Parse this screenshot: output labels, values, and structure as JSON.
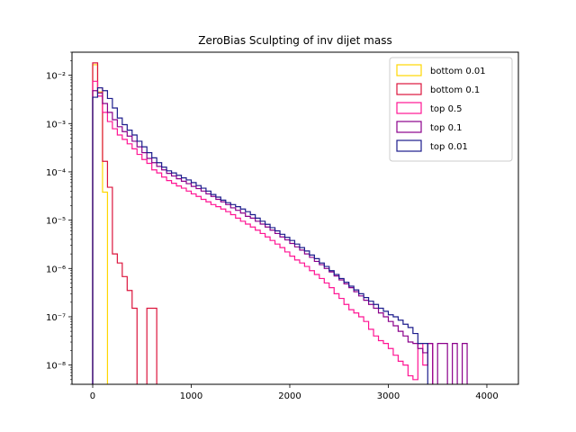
{
  "chart_data": {
    "type": "histogram-step",
    "title": "ZeroBias Sculpting of inv dijet mass",
    "xlabel": "",
    "ylabel": "",
    "xlim": [
      -210,
      4320
    ],
    "ylim": [
      4e-09,
      0.03
    ],
    "yscale": "log",
    "xticks": [
      0,
      1000,
      2000,
      3000,
      4000
    ],
    "xtick_labels": [
      "0",
      "1000",
      "2000",
      "3000",
      "4000"
    ],
    "yticks": [
      1e-08,
      1e-07,
      1e-06,
      1e-05,
      0.0001,
      0.001,
      0.01
    ],
    "ytick_labels": [
      "10⁻⁸",
      "10⁻⁷",
      "10⁻⁶",
      "10⁻⁵",
      "10⁻⁴",
      "10⁻³",
      "10⁻²"
    ],
    "legend_position": "top-right",
    "bin_width": 50,
    "series": [
      {
        "name": "bottom 0.01",
        "color": "#ffd700",
        "x_start": 0,
        "values": [
          0.0165,
          0.0045,
          3.8e-05,
          0
        ]
      },
      {
        "name": "bottom 0.1",
        "color": "#dc143c",
        "x_start": 0,
        "values": [
          0.018,
          0.0055,
          0.000165,
          4.8e-05,
          2e-06,
          1.3e-06,
          6.8e-07,
          3.5e-07,
          1.5e-07,
          0,
          0,
          1.5e-07,
          1.5e-07,
          0
        ]
      },
      {
        "name": "top 0.5",
        "color": "#ff1493",
        "x_start": 0,
        "values": [
          0.0075,
          0.0037,
          0.0017,
          0.0011,
          0.00078,
          0.00058,
          0.00047,
          0.00038,
          0.0003,
          0.00023,
          0.00018,
          0.00015,
          0.00011,
          9.5e-05,
          7.8e-05,
          6.6e-05,
          5.8e-05,
          5.1e-05,
          4.6e-05,
          4e-05,
          3.5e-05,
          3.1e-05,
          2.7e-05,
          2.4e-05,
          2.1e-05,
          1.9e-05,
          1.7e-05,
          1.5e-05,
          1.3e-05,
          1.1e-05,
          9.5e-06,
          8.3e-06,
          7.2e-06,
          6.2e-06,
          5.3e-06,
          4.5e-06,
          3.8e-06,
          3.2e-06,
          2.7e-06,
          2.2e-06,
          1.8e-06,
          1.5e-06,
          1.3e-06,
          1.1e-06,
          9e-07,
          7.5e-07,
          6.2e-07,
          5e-07,
          4e-07,
          3e-07,
          2.4e-07,
          1.8e-07,
          1.4e-07,
          1.2e-07,
          1e-07,
          8e-08,
          5.5e-08,
          4e-08,
          3.2e-08,
          2.8e-08,
          2.2e-08,
          1.6e-08,
          1.2e-08,
          1e-08,
          6e-09,
          5e-09,
          2.8e-08,
          1e-08,
          2.8e-08,
          0,
          0,
          0,
          0,
          0,
          0,
          0,
          0,
          0,
          0,
          0,
          0,
          0
        ]
      },
      {
        "name": "top 0.1",
        "color": "#8b008b",
        "x_start": 0,
        "values": [
          0.0048,
          0.0043,
          0.0026,
          0.0017,
          0.0012,
          0.00086,
          0.00068,
          0.00055,
          0.00043,
          0.00033,
          0.00025,
          0.00019,
          0.000155,
          0.00013,
          0.00011,
          9.3e-05,
          8.2e-05,
          7.2e-05,
          6.4e-05,
          5.7e-05,
          5e-05,
          4.5e-05,
          4e-05,
          3.5e-05,
          3.1e-05,
          2.7e-05,
          2.4e-05,
          2.1e-05,
          1.8e-05,
          1.6e-05,
          1.4e-05,
          1.2e-05,
          1.1e-05,
          9.5e-06,
          8.3e-06,
          7.2e-06,
          6.2e-06,
          5.3e-06,
          4.5e-06,
          3.9e-06,
          3.3e-06,
          2.8e-06,
          2.4e-06,
          2e-06,
          1.7e-06,
          1.4e-06,
          1.2e-06,
          1e-06,
          8.5e-07,
          7e-07,
          5.8e-07,
          4.8e-07,
          4e-07,
          3.3e-07,
          2.7e-07,
          2.2e-07,
          1.8e-07,
          1.5e-07,
          1.2e-07,
          1e-07,
          8e-08,
          6.5e-08,
          5e-08,
          4e-08,
          3e-08,
          2.8e-08,
          2.2e-08,
          1.8e-08,
          2.8e-08,
          0,
          2.8e-08,
          2.8e-08,
          0,
          2.8e-08,
          0,
          2.8e-08,
          0,
          0,
          0,
          0,
          0,
          0
        ]
      },
      {
        "name": "top 0.01",
        "color": "#1c1c8c",
        "x_start": 0,
        "values": [
          0.0035,
          0.0055,
          0.0048,
          0.0033,
          0.0021,
          0.0013,
          0.00095,
          0.00073,
          0.00058,
          0.00043,
          0.00033,
          0.00025,
          0.000195,
          0.000155,
          0.000125,
          0.000105,
          9.5e-05,
          8.5e-05,
          7.5e-05,
          6.8e-05,
          6e-05,
          5.2e-05,
          4.6e-05,
          4e-05,
          3.4e-05,
          3e-05,
          2.6e-05,
          2.3e-05,
          2.1e-05,
          1.9e-05,
          1.7e-05,
          1.5e-05,
          1.3e-05,
          1.1e-05,
          9.5e-06,
          8.2e-06,
          7e-06,
          6e-06,
          5.1e-06,
          4.4e-06,
          3.8e-06,
          3.2e-06,
          2.7e-06,
          2.3e-06,
          1.9e-06,
          1.6e-06,
          1.3e-06,
          1.1e-06,
          9e-07,
          7.5e-07,
          6.2e-07,
          5.2e-07,
          4.3e-07,
          3.6e-07,
          3e-07,
          2.5e-07,
          2.1e-07,
          1.8e-07,
          1.5e-07,
          1.3e-07,
          1.1e-07,
          1e-07,
          8.5e-08,
          7e-08,
          6e-08,
          4.5e-08,
          2.8e-08,
          2.8e-08,
          0,
          0,
          0,
          0,
          0,
          0,
          0,
          0,
          0,
          0,
          0,
          0,
          0,
          0
        ]
      }
    ]
  }
}
